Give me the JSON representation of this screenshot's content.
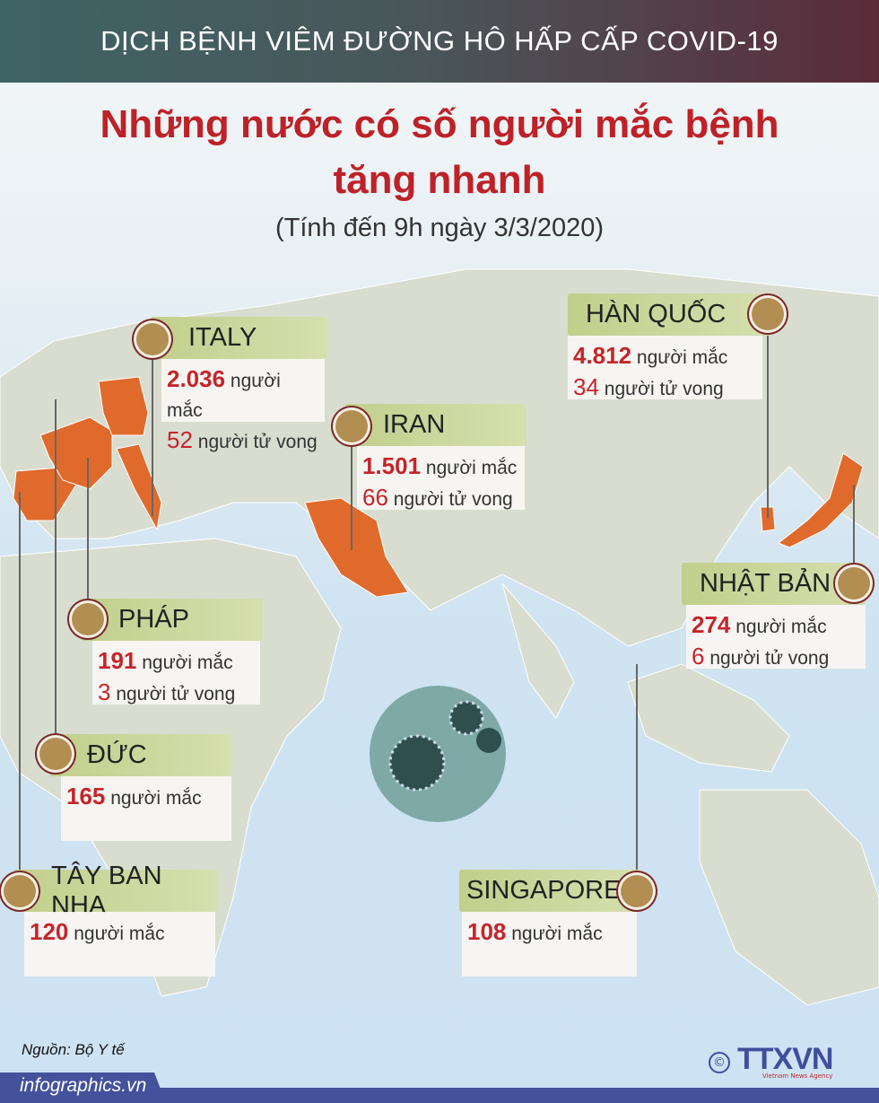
{
  "header": {
    "topic": "DỊCH BỆNH VIÊM ĐƯỜNG HÔ HẤP CẤP COVID-19",
    "title_line1": "Những nước có số người mắc bệnh",
    "title_line2": "tăng nhanh",
    "subtitle": "(Tính đến 9h ngày 3/3/2020)"
  },
  "labels": {
    "cases": "người mắc",
    "deaths": "người tử vong"
  },
  "countries": [
    {
      "name": "ITALY",
      "cases": "2.036",
      "deaths": "52"
    },
    {
      "name": "IRAN",
      "cases": "1.501",
      "deaths": "66"
    },
    {
      "name": "HÀN QUỐC",
      "cases": "4.812",
      "deaths": "34"
    },
    {
      "name": "NHẬT BẢN",
      "cases": "274",
      "deaths": "6"
    },
    {
      "name": "PHÁP",
      "cases": "191",
      "deaths": "3"
    },
    {
      "name": "ĐỨC",
      "cases": "165"
    },
    {
      "name": "TÂY BAN NHA",
      "cases": "120"
    },
    {
      "name": "SINGAPORE",
      "cases": "108"
    }
  ],
  "footer": {
    "source": "Nguồn: Bộ Y tế",
    "site": "infographics.vn",
    "logo": "TTXVN",
    "logo_sub": "Vietnam News Agency",
    "copyright": "©"
  },
  "colors": {
    "highlight_country": "#e06a2c",
    "accent_red": "#be2127",
    "header_green": "#c1cf8c",
    "brand_blue": "#44529b"
  }
}
